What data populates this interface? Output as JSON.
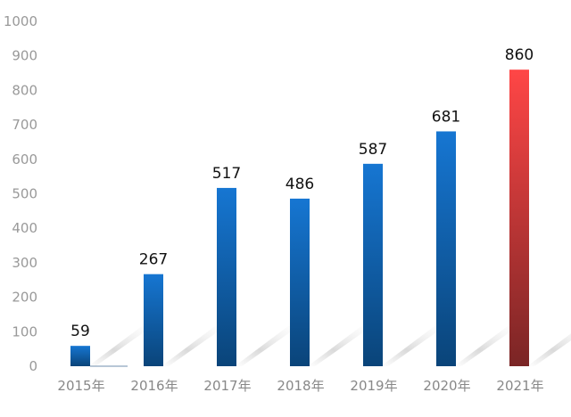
{
  "chart_data": {
    "type": "bar",
    "title": "",
    "xlabel": "",
    "ylabel": "",
    "ylim": [
      0,
      1000
    ],
    "yticks": [
      0,
      100,
      200,
      300,
      400,
      500,
      600,
      700,
      800,
      900,
      1000
    ],
    "grid": false,
    "categories": [
      "2015年",
      "2016年",
      "2017年",
      "2018年",
      "2019年",
      "2020年",
      "2021年"
    ],
    "values": [
      59,
      267,
      517,
      486,
      587,
      681,
      860
    ],
    "data_labels": [
      "59",
      "267",
      "517",
      "486",
      "587",
      "681",
      "860"
    ],
    "colors": {
      "bar_top": "#1676d2",
      "bar_bottom": "#0a4479",
      "highlight_top": "#ff4646",
      "highlight_bottom": "#7a2525"
    },
    "highlight_index": 6
  }
}
